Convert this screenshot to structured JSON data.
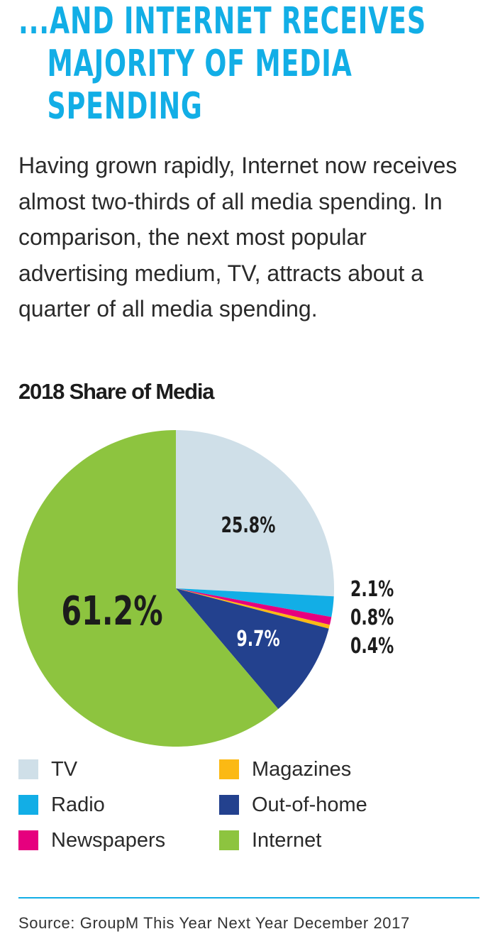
{
  "heading": {
    "line1": "...AND INTERNET RECEIVES",
    "line2": "MAJORITY OF MEDIA",
    "line3": "SPENDING"
  },
  "intro": "Having grown rapidly, Internet now receives almost two-thirds of all media spending. In comparison, the next most popular advertising medium, TV, attracts about a quarter of all media spending.",
  "colors": {
    "heading": "#12aee6",
    "tv": "#cfdfe8",
    "radio": "#12aee6",
    "newspapers": "#e6007e",
    "magazines": "#fbb914",
    "out_of_home": "#23418e",
    "internet": "#8dc43f"
  },
  "chart_data": {
    "type": "pie",
    "title": "2018 Share of Media",
    "slices": [
      {
        "name": "TV",
        "value": 25.8,
        "label": "25.8%",
        "color": "#cfdfe8",
        "label_color": "#1c1c1c"
      },
      {
        "name": "Radio",
        "value": 2.1,
        "label": "2.1%",
        "color": "#12aee6",
        "label_color": "#1c1c1c"
      },
      {
        "name": "Newspapers",
        "value": 0.8,
        "label": "0.8%",
        "color": "#e6007e",
        "label_color": "#1c1c1c"
      },
      {
        "name": "Magazines",
        "value": 0.4,
        "label": "0.4%",
        "color": "#fbb914",
        "label_color": "#1c1c1c"
      },
      {
        "name": "Out-of-home",
        "value": 9.7,
        "label": "9.7%",
        "color": "#23418e",
        "label_color": "#ffffff"
      },
      {
        "name": "Internet",
        "value": 61.2,
        "label": "61.2%",
        "color": "#8dc43f",
        "label_color": "#1c1c1c"
      }
    ],
    "start": "12 o'clock",
    "direction": "clockwise",
    "legend": [
      {
        "label": "TV",
        "color": "#cfdfe8"
      },
      {
        "label": "Radio",
        "color": "#12aee6"
      },
      {
        "label": "Newspapers",
        "color": "#e6007e"
      },
      {
        "label": "Magazines",
        "color": "#fbb914"
      },
      {
        "label": "Out-of-home",
        "color": "#23418e"
      },
      {
        "label": "Internet",
        "color": "#8dc43f"
      }
    ]
  },
  "source": "Source: GroupM This Year Next Year December 2017"
}
